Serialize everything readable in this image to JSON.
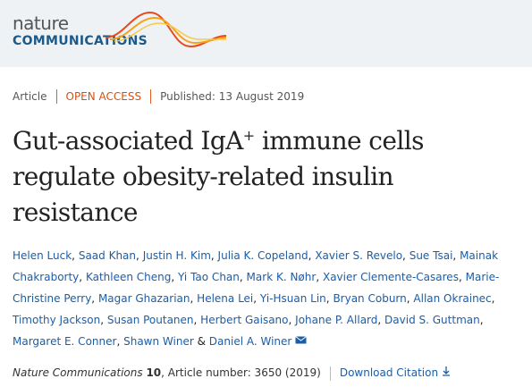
{
  "header": {
    "logo_top": "nature",
    "logo_bottom": "COMMUNICATIONS"
  },
  "article": {
    "type": "Article",
    "access": "OPEN ACCESS",
    "published": "Published: 13 August 2019",
    "title": {
      "main": "Gut-associated IgA",
      "sup": "+",
      "rest": " immune cells regulate obesity-related insulin resistance"
    },
    "authors": [
      "Helen Luck",
      "Saad Khan",
      "Justin H. Kim",
      "Julia K. Copeland",
      "Xavier S. Revelo",
      "Sue Tsai",
      "Mainak Chakraborty",
      "Kathleen Cheng",
      "Yi Tao Chan",
      "Mark K. Nøhr",
      "Xavier Clemente-Casares",
      "Marie-Christine Perry",
      "Magar Ghazarian",
      "Helena Lei",
      "Yi-Hsuan Lin",
      "Bryan Coburn",
      "Allan Okrainec",
      "Timothy Jackson",
      "Susan Poutanen",
      "Herbert Gaisano",
      "Johane P. Allard",
      "David S. Guttman",
      "Margaret E. Conner",
      "Shawn Winer",
      "Daniel A. Winer"
    ],
    "author_separator": ",",
    "last_separator": "&",
    "citation": {
      "journal": "Nature Communications",
      "volume": "10",
      "rest": ", Article number: 3650 (2019)"
    },
    "download": "Download Citation"
  }
}
